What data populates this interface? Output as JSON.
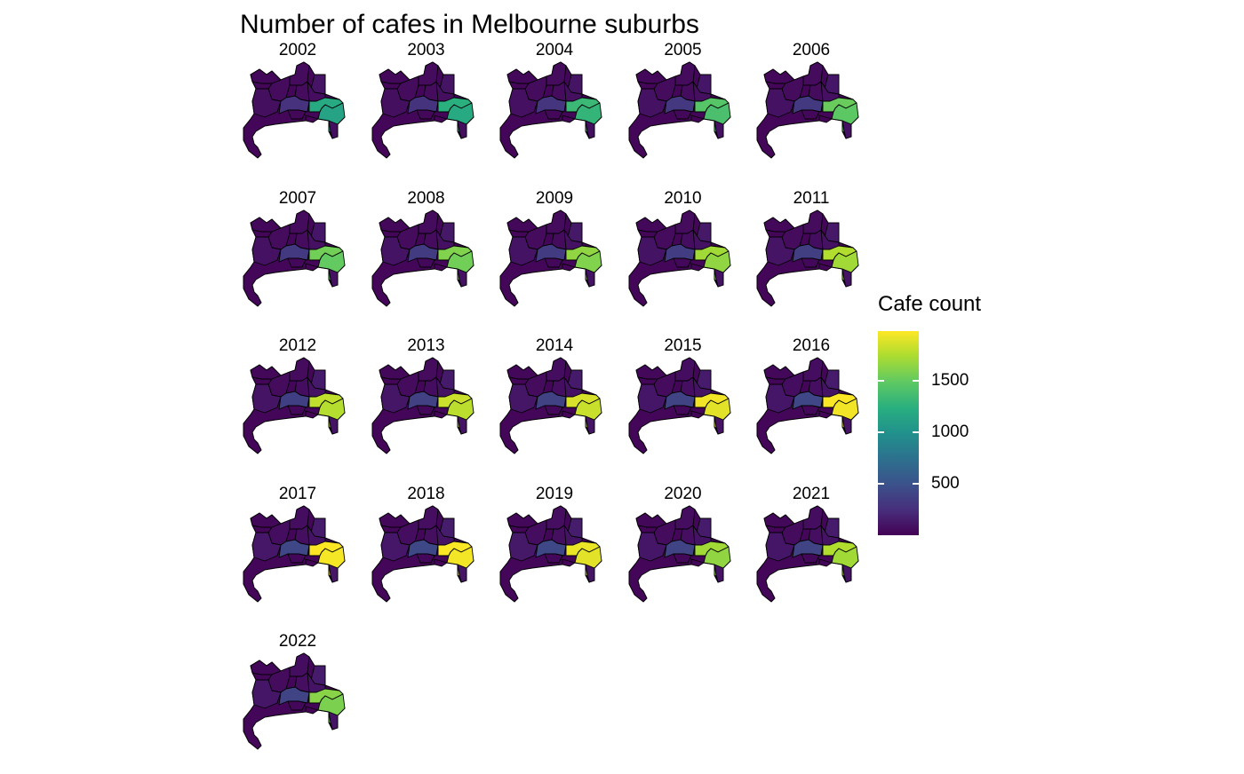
{
  "title": "Number of cafes in Melbourne suburbs",
  "legend": {
    "title": "Cafe count",
    "ticks": [
      {
        "value": 1500,
        "label": "1500"
      },
      {
        "value": 1000,
        "label": "1000"
      },
      {
        "value": 500,
        "label": "500"
      }
    ],
    "range": [
      1,
      1985
    ],
    "colors": [
      "#440154",
      "#472d7b",
      "#3b528b",
      "#2c728e",
      "#21918c",
      "#28ae80",
      "#5ec962",
      "#addc30",
      "#fde725"
    ]
  },
  "chart_data": {
    "type": "choropleth",
    "facet_variable": "year",
    "value_name": "Cafe count",
    "regions": [
      "R1",
      "R2",
      "R3",
      "R4",
      "R5",
      "R6",
      "R7",
      "R8",
      "R9",
      "R10",
      "R11",
      "R12",
      "R13"
    ],
    "facets": [
      {
        "year": "2002",
        "values": [
          40,
          60,
          60,
          55,
          110,
          80,
          280,
          70,
          1200,
          1150,
          40,
          20,
          80
        ]
      },
      {
        "year": "2003",
        "values": [
          40,
          60,
          60,
          55,
          110,
          80,
          290,
          80,
          1250,
          1200,
          40,
          20,
          80
        ]
      },
      {
        "year": "2004",
        "values": [
          40,
          60,
          60,
          60,
          110,
          85,
          300,
          80,
          1330,
          1300,
          40,
          20,
          85
        ]
      },
      {
        "year": "2005",
        "values": [
          40,
          60,
          60,
          60,
          120,
          90,
          320,
          80,
          1450,
          1400,
          40,
          20,
          90
        ]
      },
      {
        "year": "2006",
        "values": [
          40,
          60,
          60,
          60,
          120,
          95,
          330,
          85,
          1520,
          1480,
          40,
          20,
          90
        ]
      },
      {
        "year": "2007",
        "values": [
          40,
          60,
          60,
          65,
          120,
          95,
          330,
          85,
          1550,
          1500,
          40,
          20,
          95
        ]
      },
      {
        "year": "2008",
        "values": [
          40,
          60,
          60,
          65,
          130,
          100,
          340,
          85,
          1600,
          1550,
          40,
          20,
          95
        ]
      },
      {
        "year": "2009",
        "values": [
          40,
          60,
          65,
          65,
          130,
          100,
          340,
          90,
          1650,
          1600,
          40,
          20,
          100
        ]
      },
      {
        "year": "2010",
        "values": [
          40,
          60,
          65,
          70,
          130,
          105,
          350,
          90,
          1700,
          1650,
          40,
          20,
          100
        ]
      },
      {
        "year": "2011",
        "values": [
          40,
          65,
          65,
          70,
          130,
          110,
          360,
          90,
          1750,
          1700,
          40,
          20,
          100
        ]
      },
      {
        "year": "2012",
        "values": [
          40,
          65,
          65,
          70,
          140,
          110,
          370,
          95,
          1800,
          1760,
          40,
          20,
          105
        ]
      },
      {
        "year": "2013",
        "values": [
          40,
          65,
          65,
          70,
          140,
          115,
          380,
          95,
          1830,
          1780,
          40,
          20,
          105
        ]
      },
      {
        "year": "2014",
        "values": [
          40,
          65,
          70,
          75,
          140,
          115,
          390,
          95,
          1870,
          1820,
          40,
          20,
          110
        ]
      },
      {
        "year": "2015",
        "values": [
          40,
          65,
          70,
          75,
          150,
          120,
          400,
          100,
          1950,
          1900,
          40,
          20,
          110
        ]
      },
      {
        "year": "2016",
        "values": [
          40,
          70,
          70,
          75,
          150,
          120,
          420,
          100,
          1980,
          1950,
          40,
          20,
          110
        ]
      },
      {
        "year": "2017",
        "values": [
          40,
          70,
          70,
          80,
          150,
          125,
          420,
          100,
          1985,
          1960,
          40,
          20,
          115
        ]
      },
      {
        "year": "2018",
        "values": [
          40,
          70,
          75,
          80,
          160,
          125,
          430,
          105,
          1975,
          1955,
          40,
          20,
          115
        ]
      },
      {
        "year": "2019",
        "values": [
          40,
          70,
          75,
          80,
          160,
          130,
          430,
          105,
          1930,
          1900,
          40,
          20,
          115
        ]
      },
      {
        "year": "2020",
        "values": [
          40,
          65,
          70,
          75,
          150,
          120,
          400,
          100,
          1700,
          1650,
          40,
          20,
          110
        ]
      },
      {
        "year": "2021",
        "values": [
          40,
          65,
          70,
          75,
          150,
          120,
          400,
          100,
          1750,
          1700,
          40,
          20,
          110
        ]
      },
      {
        "year": "2022",
        "values": [
          40,
          65,
          70,
          75,
          150,
          120,
          400,
          100,
          1620,
          1580,
          40,
          20,
          110
        ]
      }
    ]
  }
}
